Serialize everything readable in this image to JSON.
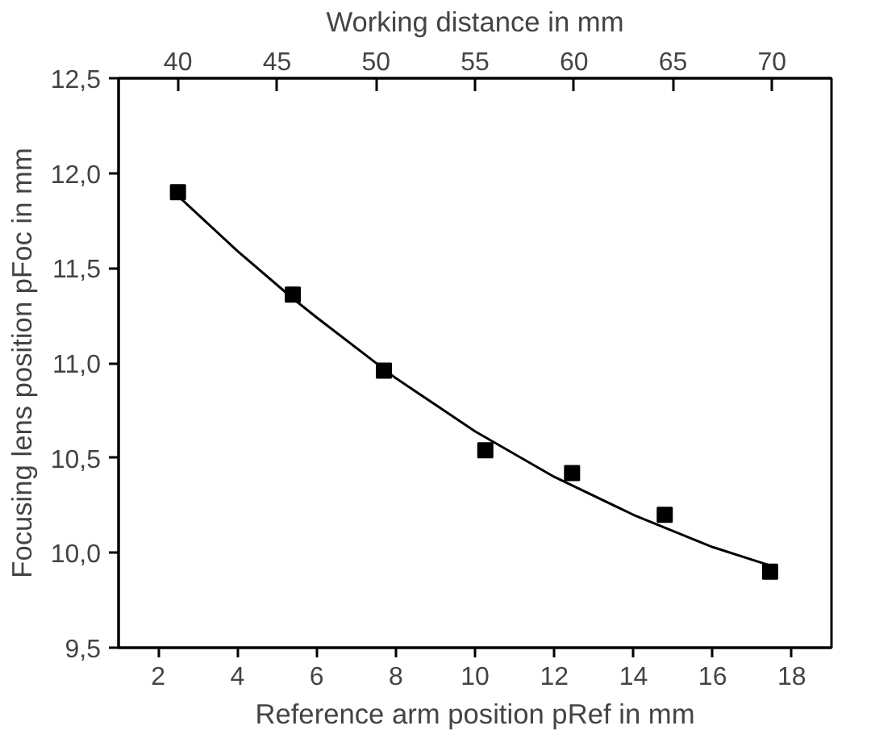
{
  "chart_data": {
    "type": "scatter",
    "xlabel": "Reference arm position pRef in mm",
    "ylabel": "Focusing lens position pFoc in mm",
    "x2label": "Working distance in mm",
    "xlim": [
      1,
      19
    ],
    "xticks": [
      2,
      4,
      6,
      8,
      10,
      12,
      14,
      16,
      18
    ],
    "x2lim": [
      37,
      73
    ],
    "x2ticks": [
      40,
      45,
      50,
      55,
      60,
      65,
      70
    ],
    "ylim": [
      9.5,
      12.5
    ],
    "yticks": [
      {
        "value": 9.5,
        "label": "9,5"
      },
      {
        "value": 10.0,
        "label": "10,0"
      },
      {
        "value": 10.5,
        "label": "10,5"
      },
      {
        "value": 11.0,
        "label": "11,0"
      },
      {
        "value": 11.5,
        "label": "11,5"
      },
      {
        "value": 12.0,
        "label": "12,0"
      },
      {
        "value": 12.5,
        "label": "12,5"
      }
    ],
    "grid": false,
    "series": [
      {
        "marker": "square",
        "color": "#000000",
        "x": [
          2.5,
          5.4,
          7.7,
          10.26,
          12.45,
          14.79,
          17.45
        ],
        "values": [
          11.9,
          11.36,
          10.96,
          10.54,
          10.42,
          10.2,
          9.9
        ]
      },
      {
        "type": "line",
        "color": "#000000",
        "line_style": "solid",
        "x": [
          2.5,
          4,
          5.4,
          6,
          8,
          10,
          12,
          14,
          16,
          17.5
        ],
        "values": [
          11.88,
          11.59,
          11.34,
          11.24,
          10.92,
          10.64,
          10.4,
          10.2,
          10.03,
          9.93
        ]
      }
    ]
  }
}
